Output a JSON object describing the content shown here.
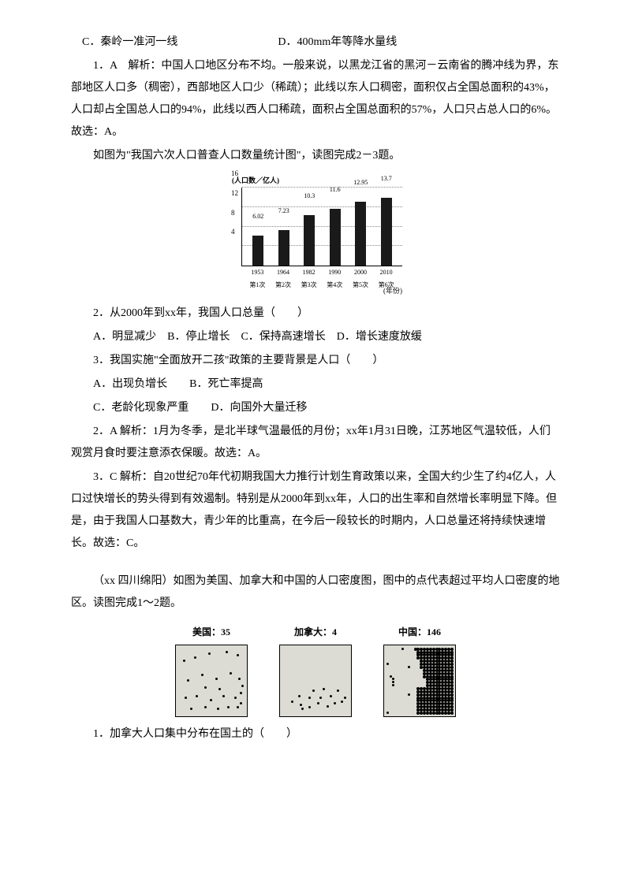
{
  "options_cd": {
    "c": "C．秦岭一准河一线",
    "d": "D．400mm年等降水量线"
  },
  "a1": "1．A　解析：中国人口地区分布不均。一般来说，以黑龙江省的黑河－云南省的腾冲线为界，东部地区人口多（稠密），西部地区人口少（稀疏）；此线以东人口稠密，面积仅占全国总面积的43%，人口却占全国总人口的94%，此线以西人口稀疏，面积占全国总面积的57%，人口只占总人口的6%。故选：A。",
  "prompt1": "如图为\"我国六次人口普查人口数量统计图\"，读图完成2－3题。",
  "chart": {
    "type": "bar",
    "ytitle": "(人口数／亿人)",
    "xtitle": "(年份)",
    "ylim_max": 16,
    "yticks": [
      "4",
      "8",
      "12",
      "16"
    ],
    "categories": [
      "1953",
      "1964",
      "1982",
      "1990",
      "2000",
      "2010"
    ],
    "subcategories": [
      "第1次",
      "第2次",
      "第3次",
      "第4次",
      "第5次",
      "第6次"
    ],
    "values": [
      6.02,
      7.23,
      10.3,
      11.6,
      12.95,
      13.7
    ],
    "value_labels": [
      "6.02",
      "7.23",
      "10.3",
      "11.6",
      "12.95",
      "13.7"
    ],
    "bar_color": "#1a1a1a",
    "grid_color": "#888888"
  },
  "q2": {
    "stem": "2．从2000年到xx年，我国人口总量（　　）",
    "opts": "A．明显减少　B．停止增长　C．保持高速增长　D．增长速度放缓"
  },
  "q3": {
    "stem": "3．我国实施\"全面放开二孩\"政策的主要背景是人口（　　）",
    "opts_ab": "A．出现负增长　　B．死亡率提高",
    "opts_cd": "C．老龄化现象严重　　D．向国外大量迁移"
  },
  "a2": "2．A 解析：1月为冬季，是北半球气温最低的月份；xx年1月31日晚，江苏地区气温较低，人们观赏月食时要注意添衣保暖。故选：A。",
  "a3": "3．C 解析：自20世纪70年代初期我国大力推行计划生育政策以来，全国大约少生了约4亿人，人口过快增长的势头得到有效遏制。特别是从2000年到xx年，人口的出生率和自然增长率明显下降。但是，由于我国人口基数大，青少年的比重高，在今后一段较长的时期内，人口总量还将持续快速增长。故选：C。",
  "prompt2": "（xx 四川绵阳）如图为美国、加拿大和中国的人口密度图，图中的点代表超过平均人口密度的地区。读图完成1～2题。",
  "maps": {
    "usa": {
      "title": "美国：35",
      "background": "#dcdcd5"
    },
    "canada": {
      "title": "加拿大：4",
      "background": "#dcdcd5"
    },
    "china": {
      "title": "中国：146",
      "background": "#dcdcd5"
    }
  },
  "q_last": "1．加拿大人口集中分布在国土的（　　）"
}
